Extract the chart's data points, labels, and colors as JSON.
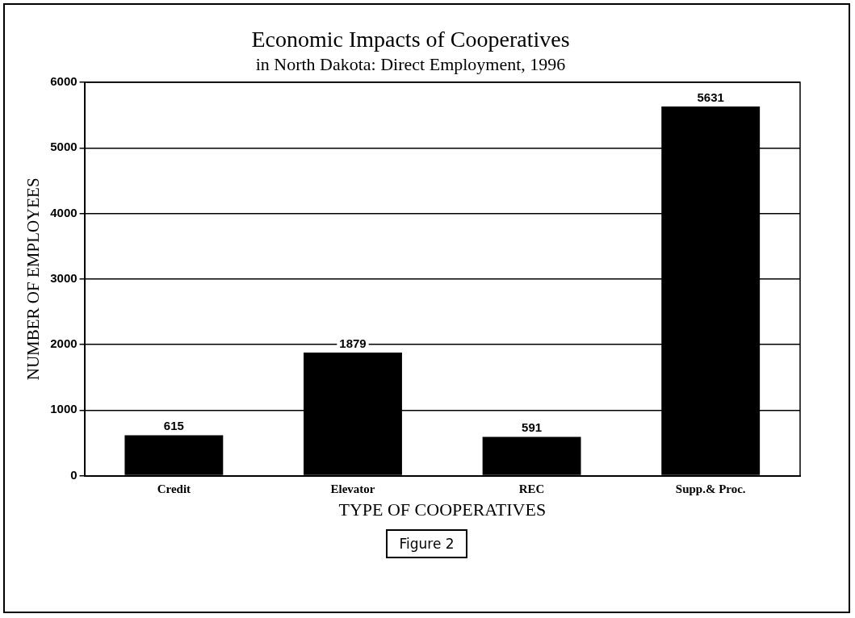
{
  "chart_data": {
    "type": "bar",
    "title": "Economic Impacts of Cooperatives",
    "subtitle": "in North Dakota: Direct Employment, 1996",
    "xlabel": "TYPE OF COOPERATIVES",
    "ylabel": "NUMBER OF EMPLOYEES",
    "categories": [
      "Credit",
      "Elevator",
      "REC",
      "Supp.& Proc."
    ],
    "values": [
      615,
      1879,
      591,
      5631
    ],
    "color": "#000000",
    "ylim": [
      0,
      6000
    ],
    "yticks": [
      0,
      1000,
      2000,
      3000,
      4000,
      5000,
      6000
    ],
    "grid": "y",
    "data_labels": true,
    "legend": false,
    "annotations": [
      "Figure 2"
    ]
  }
}
